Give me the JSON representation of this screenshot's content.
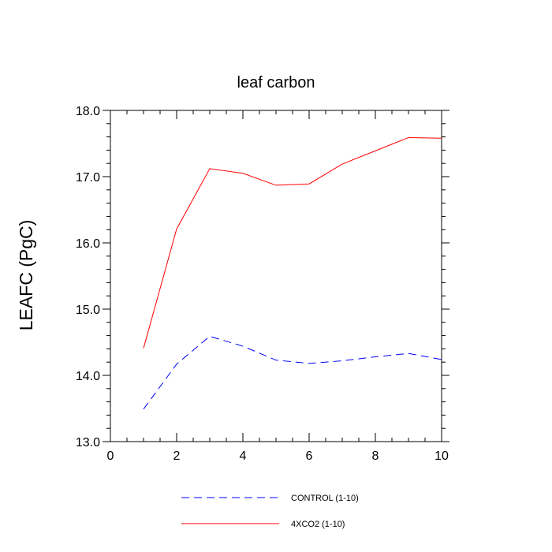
{
  "chart_data": {
    "type": "line",
    "title": "leaf carbon",
    "xlabel": "",
    "ylabel": "LEAFC  (PgC)",
    "xlim": [
      0,
      10
    ],
    "ylim": [
      13.0,
      18.0
    ],
    "x_ticks": [
      0,
      2,
      4,
      6,
      8,
      10
    ],
    "x_tick_labels": [
      "0",
      "2",
      "4",
      "6",
      "8",
      "10"
    ],
    "y_ticks": [
      13.0,
      14.0,
      15.0,
      16.0,
      17.0,
      18.0
    ],
    "y_tick_labels": [
      "13.0",
      "14.0",
      "15.0",
      "16.0",
      "17.0",
      "18.0"
    ],
    "grid": false,
    "legend_position": "bottom",
    "x": [
      1,
      2,
      3,
      4,
      5,
      6,
      7,
      8,
      9,
      10
    ],
    "series": [
      {
        "name": "CONTROL (1-10)",
        "color": "#0000ff",
        "dash": "dashed",
        "values": [
          13.49,
          14.17,
          14.59,
          14.44,
          14.23,
          14.18,
          14.22,
          14.28,
          14.33,
          14.24
        ]
      },
      {
        "name": "4XCO2 (1-10)",
        "color": "#ff0000",
        "dash": "solid",
        "values": [
          14.41,
          16.21,
          17.12,
          17.05,
          16.87,
          16.89,
          17.19,
          17.39,
          17.59,
          17.58
        ]
      }
    ]
  }
}
